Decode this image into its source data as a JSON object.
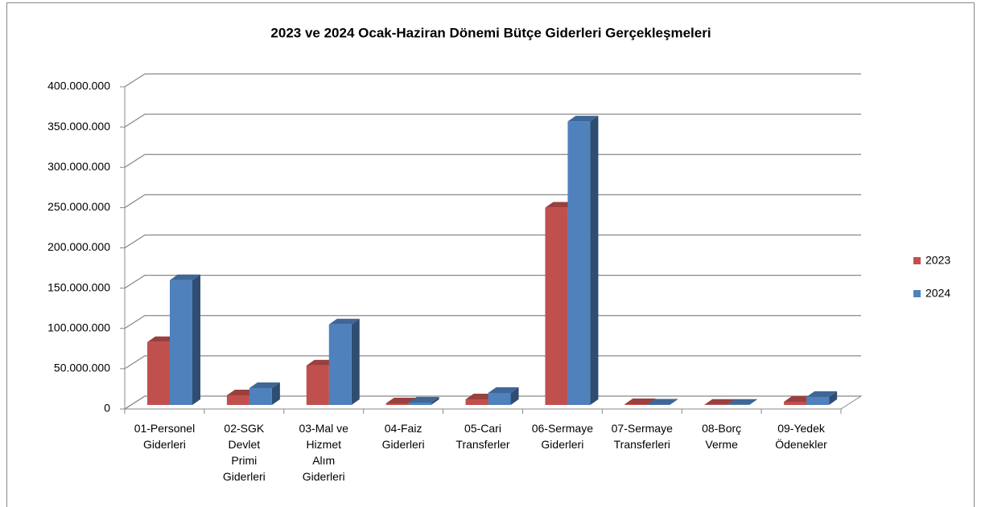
{
  "chart_data": {
    "type": "bar3d",
    "title": "2023 ve 2024 Ocak-Haziran Dönemi Bütçe Giderleri Gerçekleşmeleri",
    "categories": [
      "01-Personel\nGiderleri",
      "02-SGK\nDevlet\nPrimi\nGiderleri",
      "03-Mal ve\nHizmet\nAlım\nGiderleri",
      "04-Faiz\nGiderleri",
      "05-Cari\nTransferler",
      "06-Sermaye\nGiderleri",
      "07-Sermaye\nTransferleri",
      "08-Borç\nVerme",
      "09-Yedek\nÖdenekler"
    ],
    "series": [
      {
        "name": "2023",
        "color": "#c0504d",
        "values": [
          78000000,
          12000000,
          49000000,
          2000000,
          7000000,
          245000000,
          1000000,
          200000,
          4000000
        ]
      },
      {
        "name": "2024",
        "color": "#4f81bd",
        "values": [
          155000000,
          21000000,
          100000000,
          3000000,
          15000000,
          352000000,
          500000,
          200000,
          10000000
        ]
      }
    ],
    "ylim": [
      0,
      400000000
    ],
    "yticks": [
      0,
      {
        "value": 50000000,
        "label": "50.000.000"
      },
      {
        "value": 100000000,
        "label": "100.000.000"
      },
      {
        "value": 150000000,
        "label": "150.000.000"
      },
      {
        "value": 200000000,
        "label": "200.000.000"
      },
      {
        "value": 250000000,
        "label": "250.000.000"
      },
      {
        "value": 300000000,
        "label": "300.000.000"
      },
      {
        "value": 350000000,
        "label": "350.000.000"
      },
      {
        "value": 400000000,
        "label": "400.000.000"
      }
    ],
    "grid": true,
    "legend": "right"
  }
}
